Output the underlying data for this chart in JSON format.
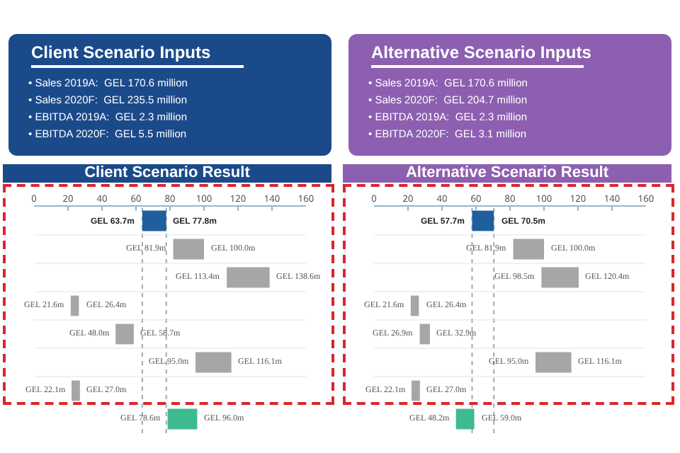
{
  "chart_data": [
    {
      "type": "other",
      "title": "Client Scenario Inputs",
      "annotations": [
        "• Sales 2019A:  GEL 170.6 million",
        "• Sales 2020F:  GEL 235.5 million",
        "• EBITDA 2019A:  GEL 2.3 million",
        "• EBITDA 2020F:  GEL 5.5 million"
      ]
    },
    {
      "type": "other",
      "title": "Alternative Scenario Inputs",
      "annotations": [
        "• Sales 2019A:  GEL 170.6 million",
        "• Sales 2020F:  GEL 204.7 million",
        "• EBITDA 2019A:  GEL 2.3 million",
        "• EBITDA 2020F:  GEL 3.1 million"
      ]
    },
    {
      "type": "bar",
      "orientation": "horizontal",
      "title": "Client Scenario Result",
      "categories": [
        null,
        null,
        null,
        null,
        null,
        null,
        null,
        null
      ],
      "base": [
        63.7,
        81.9,
        113.4,
        21.6,
        48.0,
        95.0,
        22.1,
        78.6
      ],
      "values": [
        14.1,
        18.1,
        25.2,
        4.8,
        10.7,
        21.1,
        4.9,
        17.4
      ],
      "colors": [
        "#1f5f9e",
        "#a6a6a6",
        "#a6a6a6",
        "#a6a6a6",
        "#a6a6a6",
        "#a6a6a6",
        "#a6a6a6",
        "#3dbb8f"
      ],
      "xlim": [
        0,
        160
      ],
      "xticks": [
        0,
        20,
        40,
        60,
        80,
        100,
        120,
        140,
        160
      ],
      "ref_lines": [
        {
          "axis": "x",
          "value": 63.7,
          "color": "#9aaabb",
          "line_style": "dotted"
        },
        {
          "axis": "x",
          "value": 77.8,
          "color": "#9aaabb",
          "line_style": "dotted"
        }
      ],
      "annotations": [
        {
          "text": "GEL 63.7m",
          "x": 63.7
        },
        {
          "text": "GEL 77.8m",
          "x": 77.8
        },
        {
          "text": "GEL 81.9m",
          "x": 81.9
        },
        {
          "text": "GEL 100.0m",
          "x": 100.0
        },
        {
          "text": "GEL 113.4m",
          "x": 113.4
        },
        {
          "text": "GEL 138.6m",
          "x": 138.6
        },
        {
          "text": "GEL 21.6m",
          "x": 21.6
        },
        {
          "text": "GEL 26.4m",
          "x": 26.4
        },
        {
          "text": "GEL 48.0m",
          "x": 48.0
        },
        {
          "text": "GEL 58.7m",
          "x": 58.7
        },
        {
          "text": "GEL 95.0m",
          "x": 95.0
        },
        {
          "text": "GEL 116.1m",
          "x": 116.1
        },
        {
          "text": "GEL 22.1m",
          "x": 22.1
        },
        {
          "text": "GEL 27.0m",
          "x": 27.0
        },
        {
          "text": "GEL 78.6m",
          "x": 78.6
        },
        {
          "text": "GEL 96.0m",
          "x": 96.0
        }
      ]
    },
    {
      "type": "bar",
      "orientation": "horizontal",
      "title": "Alternative Scenario Result",
      "categories": [
        null,
        null,
        null,
        null,
        null,
        null,
        null,
        null
      ],
      "base": [
        57.7,
        81.9,
        98.5,
        21.6,
        26.9,
        95.0,
        22.1,
        48.2
      ],
      "values": [
        12.8,
        18.1,
        21.9,
        4.8,
        6.0,
        21.1,
        4.9,
        10.8
      ],
      "colors": [
        "#1f5f9e",
        "#a6a6a6",
        "#a6a6a6",
        "#a6a6a6",
        "#a6a6a6",
        "#a6a6a6",
        "#a6a6a6",
        "#3dbb8f"
      ],
      "xlim": [
        0,
        160
      ],
      "xticks": [
        0,
        20,
        40,
        60,
        80,
        100,
        120,
        140,
        160
      ],
      "ref_lines": [
        {
          "axis": "x",
          "value": 57.7,
          "color": "#9aaabb",
          "line_style": "dotted"
        },
        {
          "axis": "x",
          "value": 70.5,
          "color": "#9aaabb",
          "line_style": "dotted"
        }
      ],
      "annotations": [
        {
          "text": "GEL 57.7m",
          "x": 57.7
        },
        {
          "text": "GEL 70.5m",
          "x": 70.5
        },
        {
          "text": "GEL 81.9m",
          "x": 81.9
        },
        {
          "text": "GEL 100.0m",
          "x": 100.0
        },
        {
          "text": "GEL 98.5m",
          "x": 98.5
        },
        {
          "text": "GEL 120.4m",
          "x": 120.4
        },
        {
          "text": "GEL 21.6m",
          "x": 21.6
        },
        {
          "text": "GEL 26.4m",
          "x": 26.4
        },
        {
          "text": "GEL 26.9m",
          "x": 26.9
        },
        {
          "text": "GEL 32.9m",
          "x": 32.9
        },
        {
          "text": "GEL 95.0m",
          "x": 95.0
        },
        {
          "text": "GEL 116.1m",
          "x": 116.1
        },
        {
          "text": "GEL 22.1m",
          "x": 22.1
        },
        {
          "text": "GEL 27.0m",
          "x": 27.0
        },
        {
          "text": "GEL 48.2m",
          "x": 48.2
        },
        {
          "text": "GEL 59.0m",
          "x": 59.0
        }
      ]
    }
  ]
}
